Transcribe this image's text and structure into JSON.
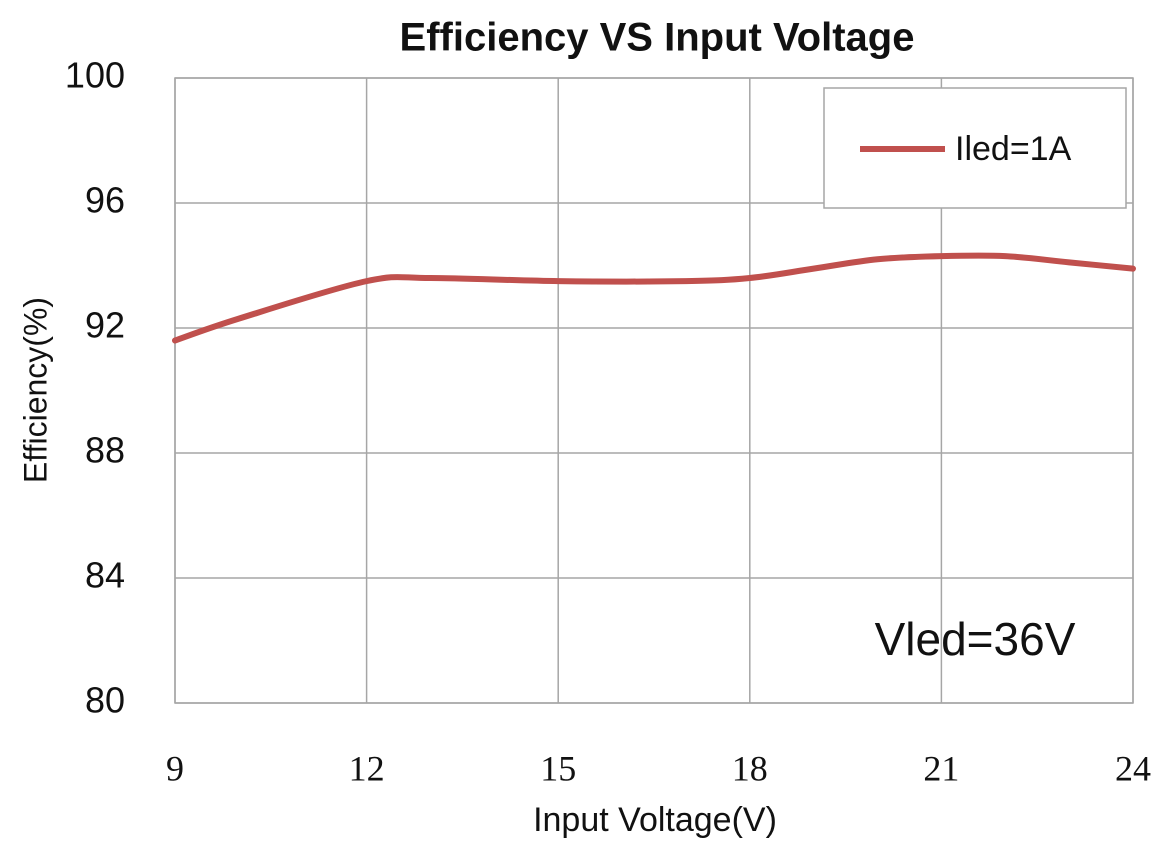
{
  "chart_data": {
    "type": "line",
    "title": "Efficiency VS Input Voltage",
    "x_label": "Input Voltage(V)",
    "y_label": "Efficiency(%)",
    "annotation": "Vled=36V",
    "x": [
      9,
      10,
      12,
      13,
      15,
      17,
      18,
      19,
      20,
      21,
      22,
      23,
      24
    ],
    "series": [
      {
        "name": "Iled=1A",
        "color": "#c0504d",
        "values": [
          91.6,
          92.3,
          93.5,
          93.6,
          93.5,
          93.5,
          93.6,
          93.9,
          94.2,
          94.3,
          94.3,
          94.1,
          93.9
        ]
      }
    ],
    "xlim": [
      9,
      24
    ],
    "xticks": [
      9,
      12,
      15,
      18,
      21,
      24
    ],
    "ylim": [
      80,
      100
    ],
    "yticks": [
      80,
      84,
      88,
      92,
      96,
      100
    ],
    "grid": true,
    "legend": "upper right"
  }
}
